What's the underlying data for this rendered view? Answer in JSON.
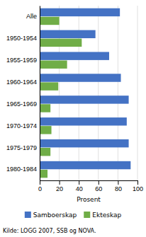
{
  "chart_data": {
    "type": "bar",
    "orientation": "horizontal",
    "categories": [
      "Alle",
      "1950-1954",
      "1955-1959",
      "1960-1964",
      "1965-1969",
      "1970-1974",
      "1975-1979",
      "1980-1984"
    ],
    "series": [
      {
        "name": "Samboerskap",
        "color": "#4472C4",
        "values": [
          82,
          57,
          71,
          83,
          91,
          89,
          91,
          93
        ]
      },
      {
        "name": "Ekteskap",
        "color": "#70AD47",
        "values": [
          20,
          43,
          28,
          19,
          11,
          12,
          11,
          8
        ]
      }
    ],
    "xlabel": "Prosent",
    "xlim": [
      0,
      100
    ],
    "xticks": [
      0,
      20,
      40,
      60,
      80,
      100
    ],
    "grid": true,
    "legend": "bottom",
    "footnote": "Kilde: LOGG 2007, SSB og NOVA."
  }
}
